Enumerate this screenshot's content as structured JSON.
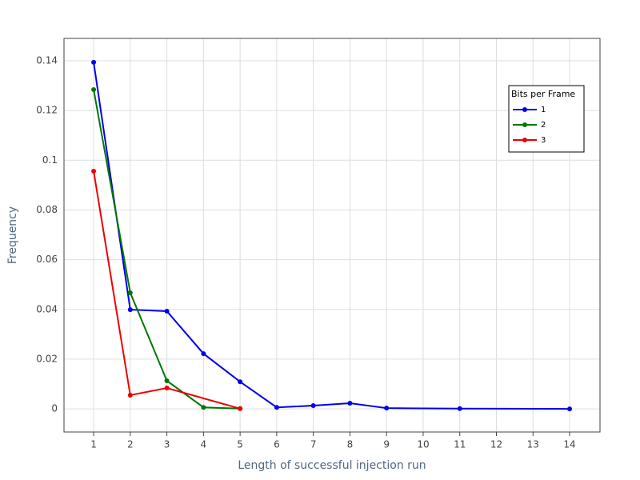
{
  "chart_data": {
    "type": "line",
    "xlabel": "Length of successful injection run",
    "ylabel": "Frequency",
    "legend_title": "Bits per Frame",
    "legend_position": "upper right",
    "grid": true,
    "xlim": [
      0.19,
      14.83
    ],
    "ylim": [
      -0.0093,
      0.149
    ],
    "xticks": [
      1,
      2,
      3,
      4,
      5,
      6,
      7,
      8,
      9,
      10,
      11,
      12,
      13,
      14
    ],
    "yticks": [
      0,
      0.02,
      0.04,
      0.06,
      0.08,
      0.1,
      0.12,
      0.14
    ],
    "series": [
      {
        "name": "1",
        "color": "#0000ee",
        "x": [
          1,
          2,
          3,
          4,
          5,
          6,
          7,
          8,
          9,
          11,
          14
        ],
        "values": [
          0.1394,
          0.0399,
          0.0393,
          0.0222,
          0.0109,
          0.0006,
          0.0013,
          0.0023,
          0.0003,
          0.0001,
          0
        ]
      },
      {
        "name": "2",
        "color": "#007700",
        "x": [
          1,
          2,
          3,
          4,
          5
        ],
        "values": [
          0.1284,
          0.0467,
          0.0113,
          0.0006,
          0.0001
        ]
      },
      {
        "name": "3",
        "color": "#ee0000",
        "x": [
          1,
          2,
          3,
          5
        ],
        "values": [
          0.0956,
          0.0055,
          0.0084,
          0.0001
        ]
      }
    ]
  }
}
